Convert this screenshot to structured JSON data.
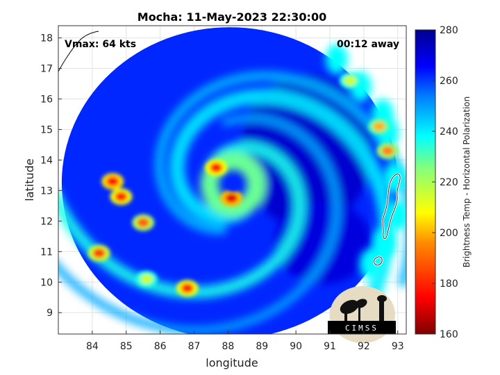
{
  "chart_data": {
    "type": "heatmap",
    "title": "Mocha: 11-May-2023 22:30:00",
    "annotations": {
      "vmax": "Vmax: 64 kts",
      "away": "00:12 away"
    },
    "xlabel": "longitude",
    "ylabel": "latitude",
    "xlim": [
      83.0,
      93.25
    ],
    "ylim": [
      8.3,
      18.4
    ],
    "xticks": [
      84,
      85,
      86,
      87,
      88,
      89,
      90,
      91,
      92,
      93
    ],
    "yticks": [
      9,
      10,
      11,
      12,
      13,
      14,
      15,
      16,
      17,
      18
    ],
    "grid": true,
    "colorbar": {
      "label": "Brightness Temp - Horizontal Polarization",
      "range": [
        160,
        280
      ],
      "ticks": [
        160,
        180,
        200,
        220,
        240,
        260,
        280
      ]
    },
    "swath": {
      "center": [
        88.05,
        13.25
      ],
      "radius_lon": 4.95,
      "radius_lat": 5.1
    },
    "storm_center": [
      88.15,
      13.2
    ],
    "features": [
      {
        "name": "eyewall-west",
        "lon": 87.65,
        "lat": 13.75,
        "value": 178
      },
      {
        "name": "eyewall-south",
        "lon": 88.1,
        "lat": 12.75,
        "value": 172
      },
      {
        "name": "rainband-west-1",
        "lon": 84.6,
        "lat": 13.3,
        "value": 175
      },
      {
        "name": "rainband-west-2",
        "lon": 84.85,
        "lat": 12.8,
        "value": 180
      },
      {
        "name": "rainband-west-3",
        "lon": 85.5,
        "lat": 11.95,
        "value": 190
      },
      {
        "name": "rainband-south-1",
        "lon": 86.8,
        "lat": 9.8,
        "value": 180
      },
      {
        "name": "rainband-south-2",
        "lon": 85.6,
        "lat": 10.1,
        "value": 215
      },
      {
        "name": "convection-sw",
        "lon": 84.2,
        "lat": 10.95,
        "value": 185
      },
      {
        "name": "band-east-1",
        "lon": 92.7,
        "lat": 14.3,
        "value": 195
      },
      {
        "name": "band-east-2",
        "lon": 92.45,
        "lat": 15.1,
        "value": 200
      },
      {
        "name": "band-east-3",
        "lon": 91.6,
        "lat": 16.6,
        "value": 215
      }
    ],
    "logo": "CIMSS"
  }
}
